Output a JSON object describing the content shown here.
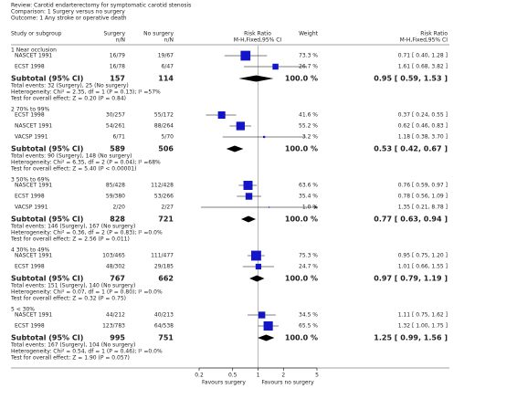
{
  "header": {
    "review": "Review:  Carotid endarterectomy for symptomatic carotid stenosis",
    "comparison": "Comparison:  1 Surgery versus no surgery",
    "outcome": "Outcome:  1 Any stroke or operative death"
  },
  "columns": {
    "study": "Study or subgroup",
    "surgery": "Surgery",
    "surgery_sub": "n/N",
    "nosurgery": "No surgery",
    "nosurgery_sub": "n/N",
    "rr": "Risk Ratio",
    "rr_sub": "M-H,Fixed,95% CI",
    "weight": "Weight",
    "rr2": "Risk Ratio",
    "rr2_sub": "M-H,Fixed,95% CI"
  },
  "groups": [
    {
      "label": "1 Near occlusion",
      "studies": [
        {
          "name": "NASCET 1991",
          "surgery": "16/79",
          "nosurgery": "19/67",
          "weight": 73.3,
          "weight_label": "73.3 %",
          "rr": 0.71,
          "lo": 0.4,
          "hi": 1.28,
          "ci_label": "0.71 [ 0.40, 1.28 ]"
        },
        {
          "name": "ECST 1998",
          "surgery": "16/78",
          "nosurgery": "6/47",
          "weight": 26.7,
          "weight_label": "26.7 %",
          "rr": 1.61,
          "lo": 0.68,
          "hi": 3.82,
          "ci_label": "1.61 [ 0.68, 3.82 ]"
        }
      ],
      "subtotal": {
        "label": "Subtotal (95% CI)",
        "surgery": "157",
        "nosurgery": "114",
        "weight_label": "100.0 %",
        "rr": 0.95,
        "lo": 0.59,
        "hi": 1.53,
        "ci_label": "0.95 [ 0.59, 1.53 ]"
      },
      "notes": [
        "Total events: 32 (Surgery), 25 (No surgery)",
        "Heterogeneity: Chi² = 2.35, df = 1 (P = 0.13); I² =57%",
        "Test for overall effect: Z = 0.20 (P = 0.84)"
      ]
    },
    {
      "label": "2 70% to 99%",
      "studies": [
        {
          "name": "ECST 1998",
          "surgery": "30/257",
          "nosurgery": "55/172",
          "weight": 41.6,
          "weight_label": "41.6 %",
          "rr": 0.37,
          "lo": 0.24,
          "hi": 0.55,
          "ci_label": "0.37 [ 0.24, 0.55 ]"
        },
        {
          "name": "NASCET 1991",
          "surgery": "54/261",
          "nosurgery": "88/264",
          "weight": 55.2,
          "weight_label": "55.2 %",
          "rr": 0.62,
          "lo": 0.46,
          "hi": 0.83,
          "ci_label": "0.62 [ 0.46, 0.83 ]"
        },
        {
          "name": "VACSP 1991",
          "surgery": "6/71",
          "nosurgery": "5/70",
          "weight": 3.2,
          "weight_label": "3.2 %",
          "rr": 1.18,
          "lo": 0.38,
          "hi": 3.7,
          "ci_label": "1.18 [ 0.38, 3.70 ]"
        }
      ],
      "subtotal": {
        "label": "Subtotal (95% CI)",
        "surgery": "589",
        "nosurgery": "506",
        "weight_label": "100.0 %",
        "rr": 0.53,
        "lo": 0.42,
        "hi": 0.67,
        "ci_label": "0.53 [ 0.42, 0.67 ]"
      },
      "notes": [
        "Total events: 90 (Surgery), 148 (No surgery)",
        "Heterogeneity: Chi² = 6.35, df = 2 (P = 0.04); I² =68%",
        "Test for overall effect: Z = 5.40 (P < 0.00001)"
      ]
    },
    {
      "label": "3 50% to 69%",
      "studies": [
        {
          "name": "NASCET 1991",
          "surgery": "85/428",
          "nosurgery": "112/428",
          "weight": 63.6,
          "weight_label": "63.6 %",
          "rr": 0.76,
          "lo": 0.59,
          "hi": 0.97,
          "ci_label": "0.76 [ 0.59, 0.97 ]"
        },
        {
          "name": "ECST 1998",
          "surgery": "59/380",
          "nosurgery": "53/266",
          "weight": 35.4,
          "weight_label": "35.4 %",
          "rr": 0.78,
          "lo": 0.56,
          "hi": 1.09,
          "ci_label": "0.78 [ 0.56, 1.09 ]"
        },
        {
          "name": "VACSP 1991",
          "surgery": "2/20",
          "nosurgery": "2/27",
          "weight": 1.0,
          "weight_label": "1.0 %",
          "rr": 1.35,
          "lo": 0.21,
          "hi": 8.78,
          "ci_label": "1.35 [ 0.21, 8.78 ]"
        }
      ],
      "subtotal": {
        "label": "Subtotal (95% CI)",
        "surgery": "828",
        "nosurgery": "721",
        "weight_label": "100.0 %",
        "rr": 0.77,
        "lo": 0.63,
        "hi": 0.94,
        "ci_label": "0.77 [ 0.63, 0.94 ]"
      },
      "notes": [
        "Total events: 146 (Surgery), 167 (No surgery)",
        "Heterogeneity: Chi² = 0.36, df = 2 (P = 0.83); I² =0.0%",
        "Test for overall effect: Z = 2.56 (P = 0.011)"
      ]
    },
    {
      "label": "4 30% to 49%",
      "studies": [
        {
          "name": "NASCET 1991",
          "surgery": "103/465",
          "nosurgery": "111/477",
          "weight": 75.3,
          "weight_label": "75.3 %",
          "rr": 0.95,
          "lo": 0.75,
          "hi": 1.2,
          "ci_label": "0.95 [ 0.75, 1.20 ]"
        },
        {
          "name": "ECST 1998",
          "surgery": "48/302",
          "nosurgery": "29/185",
          "weight": 24.7,
          "weight_label": "24.7 %",
          "rr": 1.01,
          "lo": 0.66,
          "hi": 1.55,
          "ci_label": "1.01 [ 0.66, 1.55 ]"
        }
      ],
      "subtotal": {
        "label": "Subtotal (95% CI)",
        "surgery": "767",
        "nosurgery": "662",
        "weight_label": "100.0 %",
        "rr": 0.97,
        "lo": 0.79,
        "hi": 1.19,
        "ci_label": "0.97 [ 0.79, 1.19 ]"
      },
      "notes": [
        "Total events: 151 (Surgery), 140 (No surgery)",
        "Heterogeneity: Chi² = 0.07, df = 1 (P = 0.80); I² =0.0%",
        "Test for overall effect: Z = 0.32 (P = 0.75)"
      ]
    },
    {
      "label": "5 < 30%",
      "studies": [
        {
          "name": "NASCET 1991",
          "surgery": "44/212",
          "nosurgery": "40/213",
          "weight": 34.5,
          "weight_label": "34.5 %",
          "rr": 1.11,
          "lo": 0.75,
          "hi": 1.62,
          "ci_label": "1.11 [ 0.75, 1.62 ]"
        },
        {
          "name": "ECST 1998",
          "surgery": "123/783",
          "nosurgery": "64/538",
          "weight": 65.5,
          "weight_label": "65.5 %",
          "rr": 1.32,
          "lo": 1.0,
          "hi": 1.75,
          "ci_label": "1.32 [ 1.00, 1.75 ]"
        }
      ],
      "subtotal": {
        "label": "Subtotal (95% CI)",
        "surgery": "995",
        "nosurgery": "751",
        "weight_label": "100.0 %",
        "rr": 1.25,
        "lo": 0.99,
        "hi": 1.56,
        "ci_label": "1.25 [ 0.99, 1.56 ]"
      },
      "notes": [
        "Total events: 167 (Surgery), 104 (No surgery)",
        "Heterogeneity: Chi² = 0.54, df = 1 (P = 0.46); I² =0.0%",
        "Test for overall effect: Z = 1.90 (P = 0.057)"
      ]
    }
  ],
  "axis": {
    "log": true,
    "xlim": [
      0.2,
      5
    ],
    "xticks": [
      0.2,
      0.5,
      1,
      2,
      5
    ],
    "null_value": 1,
    "favours_left": "Favours surgery",
    "favours_right": "Favours no surgery",
    "square_color": "#1515c8",
    "diamond_color": "#000000"
  }
}
